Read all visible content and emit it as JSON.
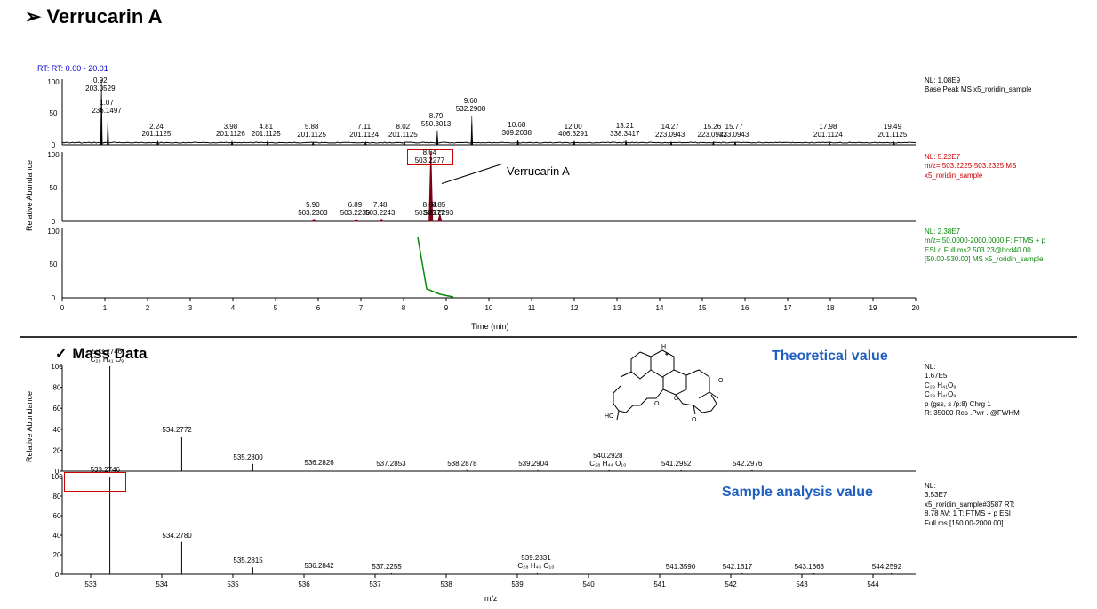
{
  "title": "Verrucarin A",
  "rt_label": "RT: 0.00 - 20.01",
  "chrom": {
    "ylabel": "Relative Abundance",
    "xlabel": "Time (min)",
    "xlim": [
      0,
      20
    ],
    "ylim": [
      0,
      100
    ],
    "xticks": [
      0,
      1,
      2,
      3,
      4,
      5,
      6,
      7,
      8,
      9,
      10,
      11,
      12,
      13,
      14,
      15,
      16,
      17,
      18,
      19,
      20
    ],
    "yticks1": [
      0,
      50,
      100
    ],
    "yticks2": [
      0,
      50,
      100
    ],
    "yticks3": [
      0,
      50,
      100
    ],
    "panel1": {
      "side": [
        "NL: 1.08E9",
        "Base Peak  MS x5_roridin_sample"
      ],
      "peaks": [
        {
          "rt": "0.92",
          "mz": "203.0529",
          "x": 0.92,
          "h": 100
        },
        {
          "rt": "1.07",
          "mz": "236.1497",
          "x": 1.07,
          "h": 42
        },
        {
          "rt": "2.24",
          "mz": "201.1125",
          "x": 2.24,
          "h": 6
        },
        {
          "rt": "3.98",
          "mz": "201.1126",
          "x": 3.98,
          "h": 6
        },
        {
          "rt": "4.81",
          "mz": "201.1125",
          "x": 4.81,
          "h": 6
        },
        {
          "rt": "5.88",
          "mz": "201.1125",
          "x": 5.88,
          "h": 5
        },
        {
          "rt": "7.11",
          "mz": "201.1124",
          "x": 7.11,
          "h": 5
        },
        {
          "rt": "8.02",
          "mz": "201.1125",
          "x": 8.02,
          "h": 5
        },
        {
          "rt": "8.79",
          "mz": "550.3013",
          "x": 8.79,
          "h": 22
        },
        {
          "rt": "9.60",
          "mz": "532.2908",
          "x": 9.6,
          "h": 44
        },
        {
          "rt": "10.68",
          "mz": "309.2038",
          "x": 10.68,
          "h": 8
        },
        {
          "rt": "12.00",
          "mz": "406.3291",
          "x": 12.0,
          "h": 6
        },
        {
          "rt": "13.21",
          "mz": "338.3417",
          "x": 13.21,
          "h": 7
        },
        {
          "rt": "14.27",
          "mz": "223.0943",
          "x": 14.27,
          "h": 5
        },
        {
          "rt": "15.26",
          "mz": "223.0943",
          "x": 15.26,
          "h": 5
        },
        {
          "rt": "15.77",
          "mz": "223.0943",
          "x": 15.77,
          "h": 5
        },
        {
          "rt": "17.98",
          "mz": "201.1124",
          "x": 17.98,
          "h": 5
        },
        {
          "rt": "19.49",
          "mz": "201.1125",
          "x": 19.49,
          "h": 5
        }
      ]
    },
    "panel2": {
      "side": [
        "NL: 5.22E7",
        "m/z= 503.2225-503.2325  MS",
        "x5_roridin_sample"
      ],
      "callout": "Verrucarin A",
      "highlight": {
        "rt": "8.64",
        "mz": "503.2277"
      },
      "peaks": [
        {
          "rt": "5.90",
          "mz": "503.2303",
          "x": 5.9,
          "h": 3
        },
        {
          "rt": "6.89",
          "mz": "503.2230",
          "x": 6.89,
          "h": 3
        },
        {
          "rt": "7.48",
          "mz": "503.2243",
          "x": 7.48,
          "h": 3
        },
        {
          "rt": "8.64",
          "mz": "503.2277",
          "x": 8.64,
          "h": 100
        },
        {
          "rt": "8.85",
          "mz": "503.2293",
          "x": 8.85,
          "h": 10
        }
      ],
      "color": "#7a0015"
    },
    "panel3": {
      "side": [
        "NL: 2.38E7",
        "m/z= 50.0000-2000.0000 F: FTMS + p",
        "ESI d Full ms2 503.23@hcd40.00",
        "[50.00-530.00]  MS x5_roridin_sample"
      ],
      "color": "#0a8a0a"
    }
  },
  "massdata_title": "Mass Data",
  "mass": {
    "ylabel": "Relative Abundance",
    "xlabel": "m/z",
    "xlim": [
      532.6,
      544.6
    ],
    "xticks": [
      533,
      534,
      535,
      536,
      537,
      538,
      539,
      540,
      541,
      542,
      543,
      544
    ],
    "yticks": [
      0,
      20,
      40,
      60,
      80,
      100
    ],
    "top": {
      "side": [
        "NL:",
        "1.67E5",
        "C₂₉ H₄₁O₉:",
        "C₂₉ H₄₁O₉",
        "p (gss, s /p:8) Chrg 1",
        "R: 35000 Res .Pwr . @FWHM"
      ],
      "label_big": "Theoretical value",
      "peaks": [
        {
          "mz": "533.2746",
          "formula": "C₂₉ H₄₁ O₉",
          "x": 533.27,
          "h": 100,
          "boxed": true
        },
        {
          "mz": "534.2772",
          "x": 534.28,
          "h": 33
        },
        {
          "mz": "535.2800",
          "x": 535.28,
          "h": 7
        },
        {
          "mz": "536.2826",
          "x": 536.28,
          "h": 2
        },
        {
          "mz": "537.2853",
          "x": 537.29,
          "h": 1
        },
        {
          "mz": "538.2878",
          "x": 538.29,
          "h": 1
        },
        {
          "mz": "539.2904",
          "x": 539.29,
          "h": 1
        },
        {
          "mz": "540.2928",
          "formula": "C₂₈ H₄₄ O₁₀",
          "x": 540.29,
          "h": 1
        },
        {
          "mz": "541.2952",
          "x": 541.3,
          "h": 1
        },
        {
          "mz": "542.2976",
          "x": 542.3,
          "h": 1
        }
      ]
    },
    "bottom": {
      "side": [
        "NL:",
        "3.53E7",
        "x5_roridin_sample#3587  RT:",
        "8.78  AV: 1 T: FTMS + p ESI",
        "Full ms [150.00-2000.00]"
      ],
      "label_big": "Sample analysis value",
      "peaks": [
        {
          "mz": "533.2746",
          "x": 533.27,
          "h": 100
        },
        {
          "mz": "534.2780",
          "x": 534.28,
          "h": 33
        },
        {
          "mz": "535.2815",
          "x": 535.28,
          "h": 7
        },
        {
          "mz": "536.2842",
          "x": 536.28,
          "h": 2
        },
        {
          "mz": "537.2255",
          "x": 537.23,
          "h": 1
        },
        {
          "mz": "539.2831",
          "formula": "C₂₈ H₄₃ O₁₀",
          "x": 539.28,
          "h": 2
        },
        {
          "mz": "541.3590",
          "x": 541.36,
          "h": 1
        },
        {
          "mz": "542.1617",
          "x": 542.16,
          "h": 1
        },
        {
          "mz": "543.1663",
          "x": 543.17,
          "h": 1
        },
        {
          "mz": "544.2592",
          "x": 544.26,
          "h": 1
        }
      ]
    }
  },
  "colors": {
    "red_side": "#c00",
    "green_side": "#0a8a0a",
    "blue": "#1f5fbf"
  }
}
